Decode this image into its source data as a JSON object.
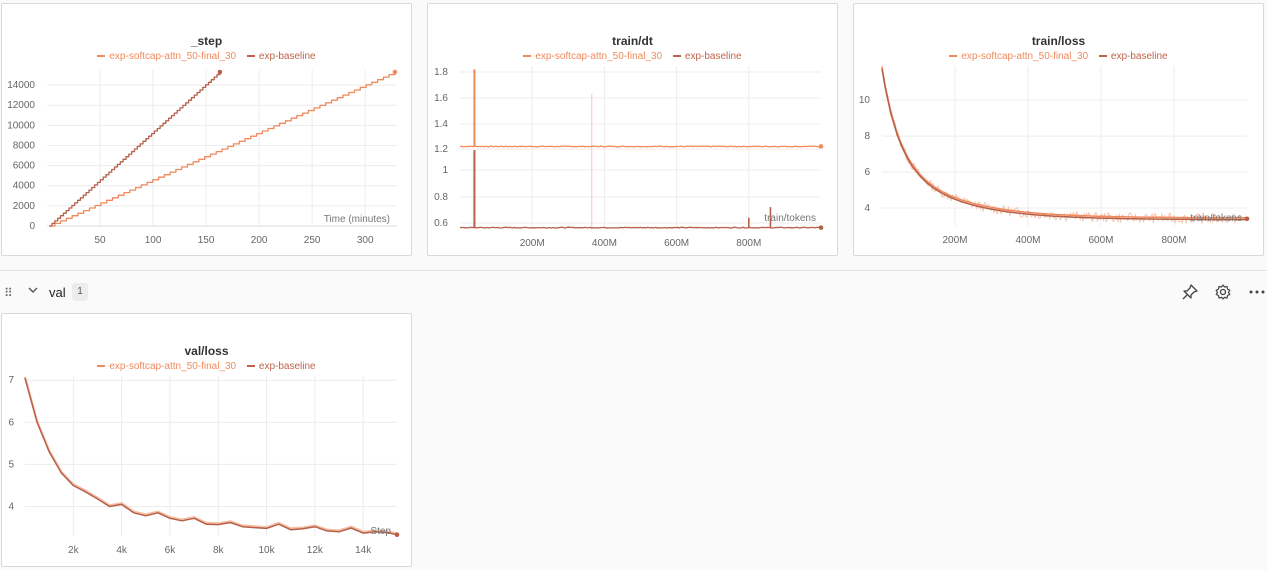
{
  "legend": {
    "series_a": "exp-softcap-attn_50-final_30",
    "series_b": "exp-baseline",
    "color_a": "#f08a5d",
    "color_b": "#c0634a"
  },
  "section": {
    "title": "val",
    "count": "1",
    "pin_icon": "pin-icon",
    "settings_icon": "gear-icon",
    "more_icon": "more-icon"
  },
  "chart_data": [
    {
      "id": "step",
      "type": "line",
      "title": "_step",
      "xlabel": "Time (minutes)",
      "ylabel": "",
      "xlim": [
        0,
        330
      ],
      "ylim": [
        0,
        15500
      ],
      "xticks": [
        "50",
        "100",
        "150",
        "200",
        "250",
        "300"
      ],
      "yticks": [
        "0",
        "2000",
        "4000",
        "6000",
        "8000",
        "10000",
        "12000",
        "14000"
      ],
      "series": [
        {
          "name": "exp-softcap-attn_50-final_30",
          "color": "#f08a5d",
          "x": [
            2,
            328
          ],
          "y": [
            0,
            15300
          ]
        },
        {
          "name": "exp-baseline",
          "color": "#b5614a",
          "x": [
            2,
            163
          ],
          "y": [
            0,
            15300
          ]
        }
      ]
    },
    {
      "id": "dt",
      "type": "line",
      "title": "train/dt",
      "xlabel": "train/tokens",
      "ylabel": "",
      "xlim": [
        0,
        1000000000
      ],
      "xticks": [
        "200M",
        "400M",
        "600M",
        "800M"
      ],
      "yticks": [
        "0.6",
        "0.8",
        "1",
        "1.2",
        "1.4",
        "1.6",
        "1.8"
      ],
      "series": [
        {
          "name": "exp-softcap-attn_50-final_30",
          "color": "#f08a5d",
          "baseline": 1.22,
          "spike_x": 40000000,
          "spike_y": 1.82
        },
        {
          "name": "exp-baseline",
          "color": "#b5614a",
          "baseline": 0.565,
          "spike_x": 40000000,
          "spike_y": 1.15,
          "small_spikes": [
            [
              800000000,
              0.64
            ],
            [
              860000000,
              0.72
            ]
          ]
        }
      ]
    },
    {
      "id": "trainloss",
      "type": "line",
      "title": "train/loss",
      "xlabel": "train/tokens",
      "ylabel": "",
      "xlim": [
        0,
        1000000000
      ],
      "ylim": [
        3.0,
        11.9
      ],
      "xticks": [
        "200M",
        "400M",
        "600M",
        "800M"
      ],
      "yticks": [
        "4",
        "6",
        "8",
        "10"
      ],
      "series": [
        {
          "name": "exp-softcap-attn_50-final_30",
          "color": "#f08a5d"
        },
        {
          "name": "exp-baseline",
          "color": "#b5614a"
        }
      ],
      "curve": {
        "start": 11.8,
        "end": 3.4
      }
    },
    {
      "id": "valloss",
      "type": "line",
      "title": "val/loss",
      "xlabel": "Step",
      "ylabel": "",
      "xlim": [
        0,
        15400
      ],
      "ylim": [
        3.3,
        7.1
      ],
      "xticks": [
        "2k",
        "4k",
        "6k",
        "8k",
        "10k",
        "12k",
        "14k"
      ],
      "yticks": [
        "4",
        "5",
        "6",
        "7"
      ],
      "series": [
        {
          "name": "exp-softcap-attn_50-final_30",
          "color": "#f08a5d"
        },
        {
          "name": "exp-baseline",
          "color": "#b5614a"
        }
      ],
      "x": [
        0,
        500,
        1000,
        1500,
        2000,
        2500,
        3000,
        3500,
        4000,
        4500,
        5000,
        5500,
        6000,
        6500,
        7000,
        7500,
        8000,
        8500,
        9000,
        9500,
        10000,
        10500,
        11000,
        11500,
        12000,
        12500,
        13000,
        13500,
        14000,
        14500,
        15000,
        15400
      ],
      "y": [
        7.05,
        6.0,
        5.3,
        4.8,
        4.5,
        4.35,
        4.18,
        4.0,
        4.05,
        3.85,
        3.78,
        3.85,
        3.72,
        3.66,
        3.72,
        3.58,
        3.57,
        3.62,
        3.52,
        3.5,
        3.48,
        3.58,
        3.45,
        3.47,
        3.52,
        3.42,
        3.4,
        3.49,
        3.37,
        3.4,
        3.38,
        3.33
      ]
    }
  ]
}
